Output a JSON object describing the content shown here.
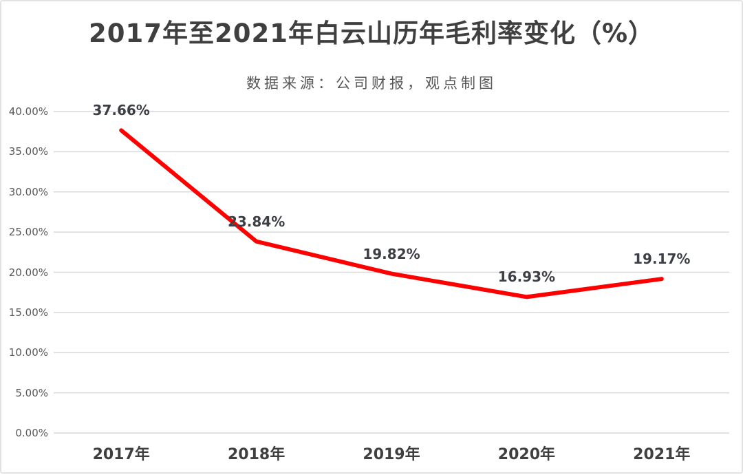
{
  "chart_data": {
    "type": "line",
    "title": "2017年至2021年白云山历年毛利率变化（%）",
    "subtitle": "数据来源：公司财报，观点制图",
    "categories": [
      "2017年",
      "2018年",
      "2019年",
      "2020年",
      "2021年"
    ],
    "values": [
      37.66,
      23.84,
      19.82,
      16.93,
      19.17
    ],
    "point_labels": [
      "37.66%",
      "23.84%",
      "19.82%",
      "16.93%",
      "19.17%"
    ],
    "y_ticks": [
      {
        "value": 40,
        "label": "40.00%"
      },
      {
        "value": 35,
        "label": "35.00%"
      },
      {
        "value": 30,
        "label": "30.00%"
      },
      {
        "value": 25,
        "label": "25.00%"
      },
      {
        "value": 20,
        "label": "20.00%"
      },
      {
        "value": 15,
        "label": "15.00%"
      },
      {
        "value": 10,
        "label": "10.00%"
      },
      {
        "value": 5,
        "label": "5.00%"
      },
      {
        "value": 0,
        "label": "0.00%"
      }
    ],
    "ylim": [
      0,
      40
    ],
    "grid": true,
    "legend": "none",
    "colors": {
      "line": "#fe0000",
      "gridline": "#d9d9d9",
      "title_text": "#3f3f3f",
      "subtitle_text": "#595959",
      "axis_text": "#595959",
      "category_text": "#3f3f3f",
      "data_label_text": "#3d3f46",
      "background": "#ffffff",
      "border": "#e2e2e2"
    }
  }
}
